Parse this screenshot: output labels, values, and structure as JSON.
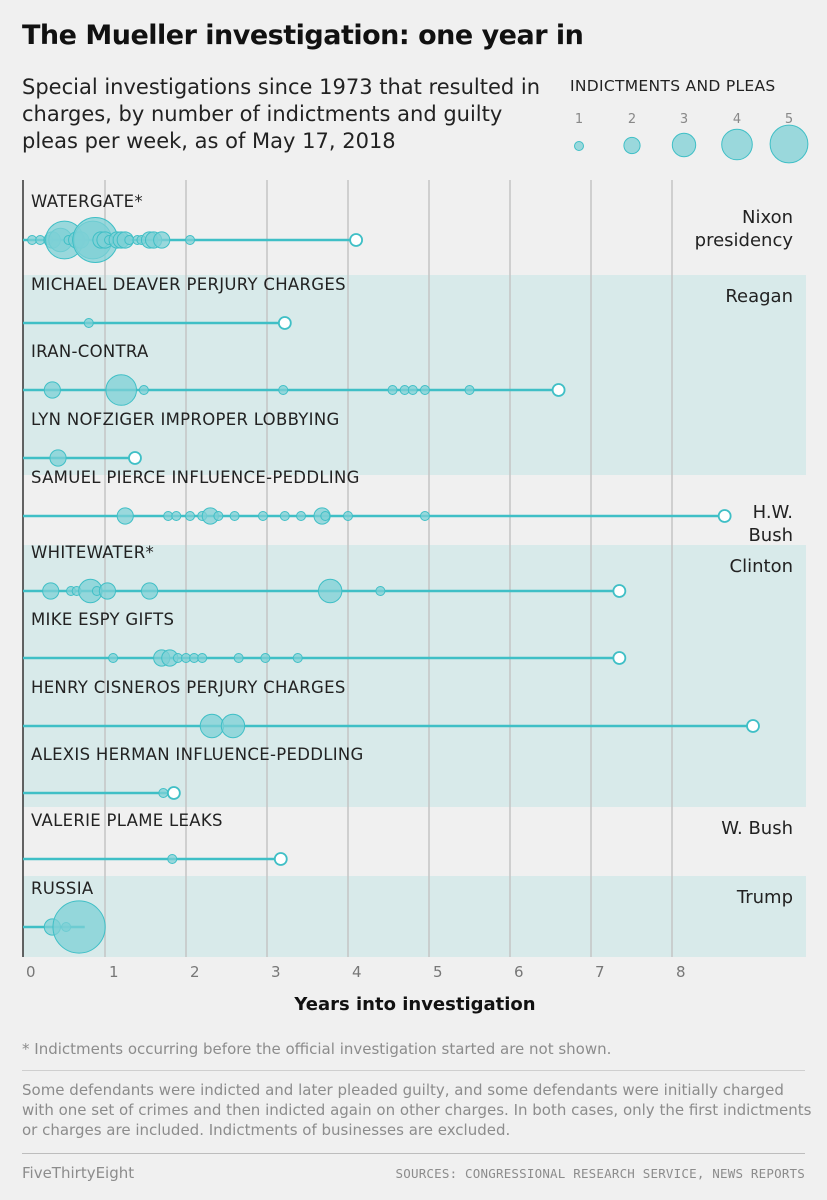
{
  "title": "The Mueller investigation: one year in",
  "subtitle": "Special investigations since 1973 that resulted in charges, by number of indictments and guilty pleas per week, as of May 17, 2018",
  "colors": {
    "accent": "#3fbfc6",
    "dot_fill": "#7ed0d6",
    "band": "#d8eaea",
    "background": "#f0f0f0"
  },
  "legend": {
    "title": "INDICTMENTS AND PLEAS",
    "sizes": [
      "1",
      "2",
      "3",
      "4",
      "5"
    ]
  },
  "footnote": "* Indictments occurring before the official investigation started are not shown.",
  "notes": "Some defendants were indicted and later pleaded guilty, and some defendants were initially charged with one set of crimes and then indicted again on other charges. In both cases, only the first indictments or charges are included. Indictments of businesses are excluded.",
  "brand": "FiveThirtyEight",
  "sources": "SOURCES: CONGRESSIONAL RESEARCH SERVICE, NEWS REPORTS",
  "chart_data": {
    "type": "scatter",
    "xlabel": "Years into investigation",
    "ylabel": "",
    "xlim": [
      0,
      9.6
    ],
    "xticks": [
      0,
      1,
      2,
      3,
      4,
      5,
      6,
      7,
      8
    ],
    "grid": true,
    "size_encoding": "indictments and pleas per week (1-5)",
    "presidencies": [
      {
        "label": "Nixon\npresidency",
        "rows": [
          0,
          0
        ],
        "shaded": false
      },
      {
        "label": "Reagan",
        "rows": [
          1,
          3
        ],
        "shaded": true
      },
      {
        "label": "H.W.\nBush",
        "rows": [
          4,
          4
        ],
        "shaded": false
      },
      {
        "label": "Clinton",
        "rows": [
          5,
          8
        ],
        "shaded": true
      },
      {
        "label": "W. Bush",
        "rows": [
          9,
          9
        ],
        "shaded": false
      },
      {
        "label": "Trump",
        "rows": [
          10,
          10
        ],
        "shaded": true
      }
    ],
    "series": [
      {
        "name": "WATERGATE*",
        "end": 4.1,
        "points": [
          [
            0.1,
            1
          ],
          [
            0.2,
            1
          ],
          [
            0.3,
            1
          ],
          [
            0.35,
            2
          ],
          [
            0.45,
            3
          ],
          [
            0.5,
            5
          ],
          [
            0.55,
            1
          ],
          [
            0.65,
            2
          ],
          [
            0.7,
            2
          ],
          [
            0.85,
            5
          ],
          [
            0.88,
            6
          ],
          [
            0.95,
            2
          ],
          [
            1.0,
            2
          ],
          [
            1.05,
            1
          ],
          [
            1.15,
            2
          ],
          [
            1.2,
            2
          ],
          [
            1.25,
            2
          ],
          [
            1.3,
            1
          ],
          [
            1.4,
            1
          ],
          [
            1.45,
            1
          ],
          [
            1.55,
            2
          ],
          [
            1.6,
            2
          ],
          [
            1.7,
            2
          ],
          [
            2.05,
            1
          ]
        ]
      },
      {
        "name": "MICHAEL DEAVER PERJURY CHARGES",
        "end": 3.22,
        "points": [
          [
            0.8,
            1
          ]
        ]
      },
      {
        "name": "IRAN-CONTRA",
        "end": 6.6,
        "points": [
          [
            0.35,
            2
          ],
          [
            1.2,
            4
          ],
          [
            1.48,
            1
          ],
          [
            3.2,
            1
          ],
          [
            4.55,
            1
          ],
          [
            4.7,
            1
          ],
          [
            4.8,
            1
          ],
          [
            4.95,
            1
          ],
          [
            5.5,
            1
          ]
        ]
      },
      {
        "name": "LYN NOFZIGER IMPROPER LOBBYING",
        "end": 1.37,
        "points": [
          [
            0.42,
            2
          ]
        ]
      },
      {
        "name": "SAMUEL PIERCE INFLUENCE-PEDDLING",
        "end": 8.65,
        "points": [
          [
            1.25,
            2
          ],
          [
            1.78,
            1
          ],
          [
            1.88,
            1
          ],
          [
            2.05,
            1
          ],
          [
            2.2,
            1
          ],
          [
            2.3,
            2
          ],
          [
            2.4,
            1
          ],
          [
            2.6,
            1
          ],
          [
            2.95,
            1
          ],
          [
            3.22,
            1
          ],
          [
            3.42,
            1
          ],
          [
            3.68,
            2
          ],
          [
            3.72,
            1
          ],
          [
            4.0,
            1
          ],
          [
            4.95,
            1
          ]
        ]
      },
      {
        "name": "WHITEWATER*",
        "end": 7.35,
        "points": [
          [
            0.33,
            2
          ],
          [
            0.58,
            1
          ],
          [
            0.65,
            1
          ],
          [
            0.82,
            3
          ],
          [
            0.9,
            1
          ],
          [
            1.03,
            2
          ],
          [
            1.55,
            2
          ],
          [
            3.78,
            3
          ],
          [
            4.4,
            1
          ]
        ]
      },
      {
        "name": "MIKE ESPY GIFTS",
        "end": 7.35,
        "points": [
          [
            1.1,
            1
          ],
          [
            1.7,
            2
          ],
          [
            1.8,
            2
          ],
          [
            1.9,
            1
          ],
          [
            2.0,
            1
          ],
          [
            2.1,
            1
          ],
          [
            2.2,
            1
          ],
          [
            2.65,
            1
          ],
          [
            2.98,
            1
          ],
          [
            3.38,
            1
          ]
        ]
      },
      {
        "name": "HENRY CISNEROS PERJURY CHARGES",
        "end": 9.0,
        "points": [
          [
            2.32,
            3
          ],
          [
            2.58,
            3
          ]
        ]
      },
      {
        "name": "ALEXIS HERMAN INFLUENCE-PEDDLING",
        "end": 1.85,
        "points": [
          [
            1.72,
            1
          ]
        ]
      },
      {
        "name": "VALERIE PLAME LEAKS",
        "end": 3.17,
        "points": [
          [
            1.83,
            1
          ]
        ]
      },
      {
        "name": "RUSSIA",
        "end": null,
        "points": [
          [
            0.35,
            2
          ],
          [
            0.52,
            1
          ],
          [
            0.68,
            7
          ]
        ]
      }
    ]
  }
}
